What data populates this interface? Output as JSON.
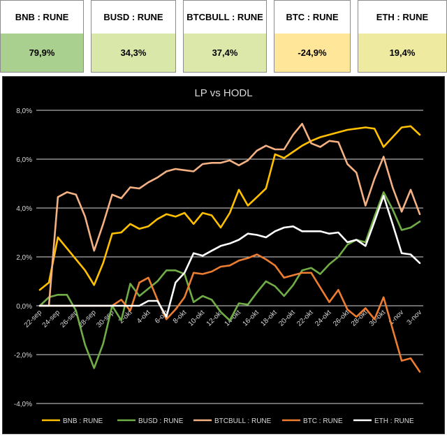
{
  "tiles": [
    {
      "label": "BNB : RUNE",
      "value": "79,9%",
      "color": "#a9d08e"
    },
    {
      "label": "BUSD : RUNE",
      "value": "34,3%",
      "color": "#d9e7a8"
    },
    {
      "label": "BTCBULL : RUNE",
      "value": "37,4%",
      "color": "#dbe8aa"
    },
    {
      "label": "BTC : RUNE",
      "value": "-24,9%",
      "color": "#ffe699"
    },
    {
      "label": "ETH : RUNE",
      "value": "19,4%",
      "color": "#eeeaa0"
    }
  ],
  "chart_data": {
    "type": "line",
    "title": "LP vs HODL",
    "x": [
      "22-sep",
      "23-sep",
      "24-sep",
      "25-sep",
      "26-sep",
      "27-sep",
      "28-sep",
      "29-sep",
      "30-sep",
      "1-okt",
      "2-okt",
      "3-okt",
      "4-okt",
      "5-okt",
      "6-okt",
      "7-okt",
      "8-okt",
      "9-okt",
      "10-okt",
      "11-okt",
      "12-okt",
      "13-okt",
      "14-okt",
      "15-okt",
      "16-okt",
      "17-okt",
      "18-okt",
      "19-okt",
      "20-okt",
      "21-okt",
      "22-okt",
      "23-okt",
      "24-okt",
      "25-okt",
      "26-okt",
      "27-okt",
      "28-okt",
      "29-okt",
      "30-okt",
      "31-okt",
      "1-nov",
      "2-nov",
      "3-nov"
    ],
    "xtick_labels": [
      "22-sep",
      "24-sep",
      "26-sep",
      "28-sep",
      "30-sep",
      "2-okt",
      "4-okt",
      "6-okt",
      "8-okt",
      "10-okt",
      "12-okt",
      "14-okt",
      "16-okt",
      "18-okt",
      "20-okt",
      "22-okt",
      "24-okt",
      "26-okt",
      "28-okt",
      "30-okt",
      "1-nov",
      "3-nov"
    ],
    "ylim": [
      -4,
      8
    ],
    "ytick_labels": [
      "-4,0%",
      "-2,0%",
      "0,0%",
      "2,0%",
      "4,0%",
      "6,0%",
      "8,0%"
    ],
    "grid": true,
    "legend_position": "bottom",
    "series": [
      {
        "name": "BNB : RUNE",
        "color": "#ffc000",
        "values": [
          0.65,
          0.95,
          2.8,
          2.35,
          1.9,
          1.45,
          0.85,
          1.75,
          2.95,
          3.0,
          3.35,
          3.15,
          3.25,
          3.55,
          3.75,
          3.65,
          3.8,
          3.35,
          3.8,
          3.7,
          3.2,
          3.8,
          4.75,
          4.1,
          4.45,
          4.8,
          6.2,
          6.05,
          6.3,
          6.55,
          6.75,
          6.9,
          7.0,
          7.1,
          7.2,
          7.25,
          7.3,
          7.25,
          6.5,
          6.9,
          7.3,
          7.35,
          7.0
        ]
      },
      {
        "name": "BUSD : RUNE",
        "color": "#70ad47",
        "values": [
          0.0,
          0.35,
          0.45,
          0.45,
          -0.2,
          -1.6,
          -2.55,
          -1.55,
          0.0,
          -0.6,
          0.9,
          0.4,
          0.7,
          1.0,
          1.45,
          1.45,
          1.3,
          0.15,
          0.4,
          0.25,
          -0.25,
          -0.6,
          0.1,
          0.05,
          0.55,
          1.0,
          0.8,
          0.4,
          0.85,
          1.45,
          1.55,
          1.3,
          1.7,
          2.0,
          2.5,
          2.7,
          2.6,
          3.65,
          4.65,
          3.95,
          3.1,
          3.2,
          3.45
        ]
      },
      {
        "name": "BTCBULL : RUNE",
        "color": "#f4b183",
        "values": [
          0.0,
          0.0,
          4.45,
          4.65,
          4.55,
          3.65,
          2.25,
          3.35,
          4.55,
          4.4,
          4.85,
          4.8,
          5.05,
          5.25,
          5.5,
          5.6,
          5.55,
          5.5,
          5.8,
          5.85,
          5.85,
          5.95,
          5.75,
          5.95,
          6.35,
          6.55,
          6.4,
          6.4,
          7.0,
          7.45,
          6.65,
          6.5,
          6.75,
          6.7,
          5.8,
          5.45,
          4.1,
          5.2,
          6.1,
          4.85,
          3.85,
          4.75,
          3.75
        ]
      },
      {
        "name": "BTC : RUNE",
        "color": "#ed7d31",
        "values": [
          0.0,
          0.0,
          0.0,
          0.0,
          0.0,
          0.0,
          0.0,
          0.0,
          0.0,
          0.25,
          -0.2,
          0.95,
          1.15,
          0.25,
          -0.55,
          -0.15,
          0.35,
          1.35,
          1.3,
          1.4,
          1.6,
          1.65,
          1.85,
          1.95,
          2.1,
          1.9,
          1.65,
          1.15,
          1.25,
          1.35,
          1.35,
          0.75,
          0.15,
          0.65,
          -0.15,
          -0.45,
          -0.1,
          -0.55,
          0.35,
          -0.95,
          -2.25,
          -2.15,
          -2.7
        ]
      },
      {
        "name": "ETH : RUNE",
        "color": "#ffffff",
        "values": [
          0.0,
          0.0,
          0.0,
          0.0,
          0.0,
          0.0,
          0.0,
          0.0,
          0.0,
          0.0,
          0.0,
          0.0,
          0.2,
          0.2,
          -0.45,
          0.95,
          1.35,
          2.15,
          2.05,
          2.25,
          2.45,
          2.55,
          2.7,
          2.95,
          2.9,
          2.8,
          3.05,
          3.2,
          3.25,
          3.05,
          3.05,
          3.05,
          2.95,
          3.0,
          2.6,
          2.7,
          2.45,
          3.45,
          4.5,
          3.35,
          2.15,
          2.1,
          1.75
        ]
      }
    ]
  }
}
